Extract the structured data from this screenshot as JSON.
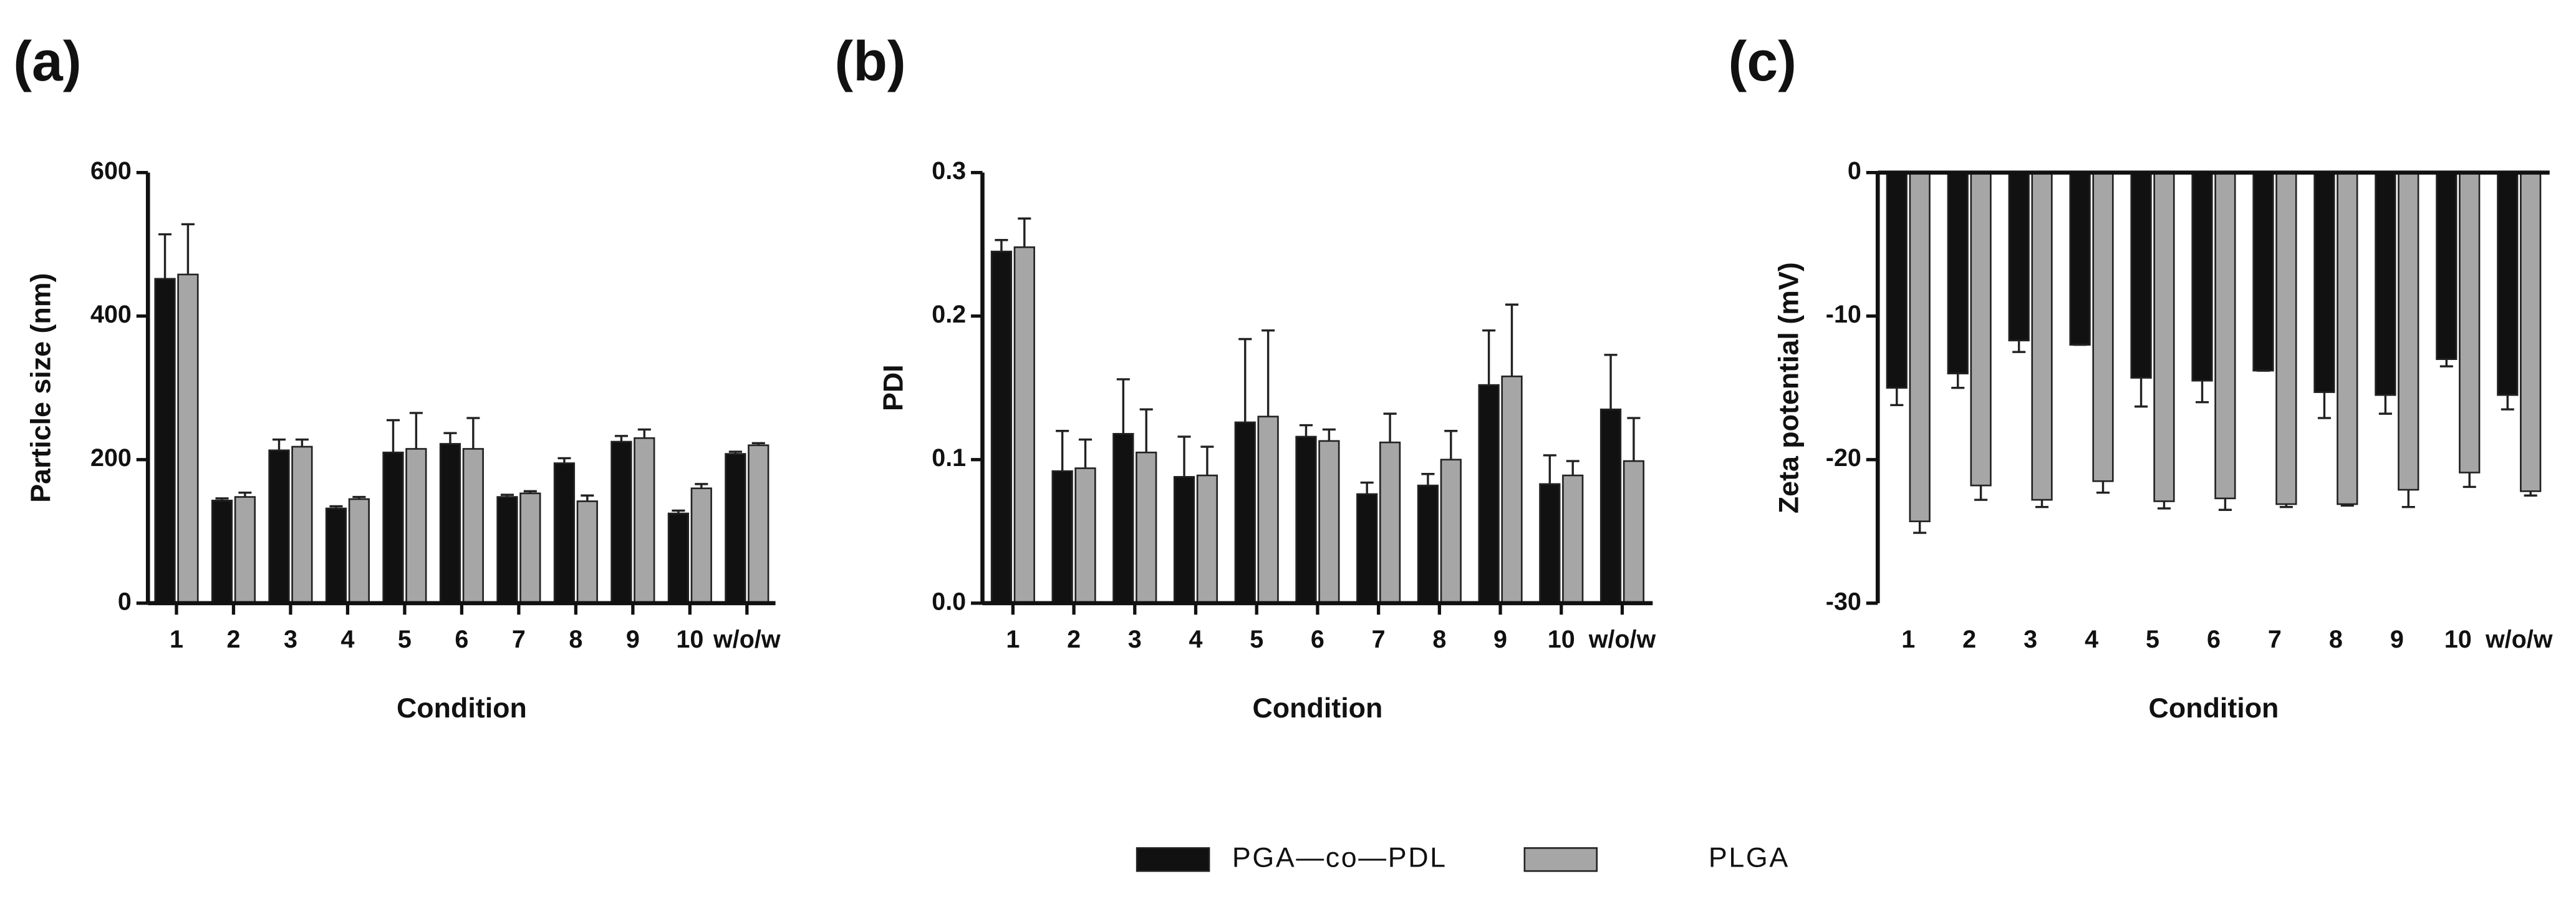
{
  "legend": [
    {
      "name": "PGA—co—PDL",
      "color": "#111111"
    },
    {
      "name": "PLGA",
      "color": "#a6a6a6"
    }
  ],
  "chart_data": [
    {
      "type": "bar",
      "title": "(a)",
      "y_label": "Particle size (nm)",
      "x_label": "Condition",
      "categories": [
        "1",
        "2",
        "3",
        "4",
        "5",
        "6",
        "7",
        "8",
        "9",
        "10",
        "w/o/w"
      ],
      "series": [
        {
          "values": [
            452,
            143,
            213,
            132,
            210,
            222,
            148,
            195,
            225,
            125,
            208
          ],
          "errors": [
            62,
            3,
            15,
            3,
            45,
            15,
            3,
            7,
            8,
            4,
            3
          ]
        },
        {
          "values": [
            458,
            148,
            218,
            145,
            215,
            215,
            153,
            142,
            230,
            160,
            220
          ],
          "errors": [
            70,
            6,
            10,
            3,
            50,
            43,
            3,
            8,
            12,
            6,
            3
          ]
        }
      ],
      "ylim": [
        0,
        600
      ],
      "yticks": [
        0,
        200,
        400,
        600
      ]
    },
    {
      "type": "bar",
      "title": "(b)",
      "y_label": "PDI",
      "x_label": "Condition",
      "categories": [
        "1",
        "2",
        "3",
        "4",
        "5",
        "6",
        "7",
        "8",
        "9",
        "10",
        "w/o/w"
      ],
      "series": [
        {
          "values": [
            0.245,
            0.092,
            0.118,
            0.088,
            0.126,
            0.116,
            0.076,
            0.082,
            0.152,
            0.083,
            0.135
          ],
          "errors": [
            0.008,
            0.028,
            0.038,
            0.028,
            0.058,
            0.008,
            0.008,
            0.008,
            0.038,
            0.02,
            0.038
          ]
        },
        {
          "values": [
            0.248,
            0.094,
            0.105,
            0.089,
            0.13,
            0.113,
            0.112,
            0.1,
            0.158,
            0.089,
            0.099
          ],
          "errors": [
            0.02,
            0.02,
            0.03,
            0.02,
            0.06,
            0.008,
            0.02,
            0.02,
            0.05,
            0.01,
            0.03
          ]
        }
      ],
      "ylim": [
        0,
        0.3
      ],
      "yticks": [
        {
          "value": 0,
          "label": "0.0"
        },
        0.1,
        0.2,
        0.3
      ]
    },
    {
      "type": "bar",
      "title": "(c)",
      "y_label": "Zeta potential (mV)",
      "x_label": "Condition",
      "categories": [
        "1",
        "2",
        "3",
        "4",
        "5",
        "6",
        "7",
        "8",
        "9",
        "10",
        "w/o/w"
      ],
      "series": [
        {
          "values": [
            -15,
            -14,
            -11.7,
            -12,
            -14.3,
            -14.5,
            -13.8,
            -15.3,
            -15.5,
            -13,
            -15.5
          ],
          "errors": [
            1.2,
            1,
            0.8,
            0,
            2,
            1.5,
            0,
            1.8,
            1.3,
            0.5,
            1
          ]
        },
        {
          "values": [
            -24.3,
            -21.8,
            -22.8,
            -21.5,
            -22.9,
            -22.7,
            -23.1,
            -23.1,
            -22.1,
            -20.9,
            -22.2
          ],
          "errors": [
            0.8,
            1,
            0.5,
            0.8,
            0.5,
            0.8,
            0.2,
            0.1,
            1.2,
            1,
            0.3
          ]
        }
      ],
      "ylim": [
        -30,
        0
      ],
      "yticks": [
        -30,
        -20,
        -10,
        0
      ]
    }
  ]
}
